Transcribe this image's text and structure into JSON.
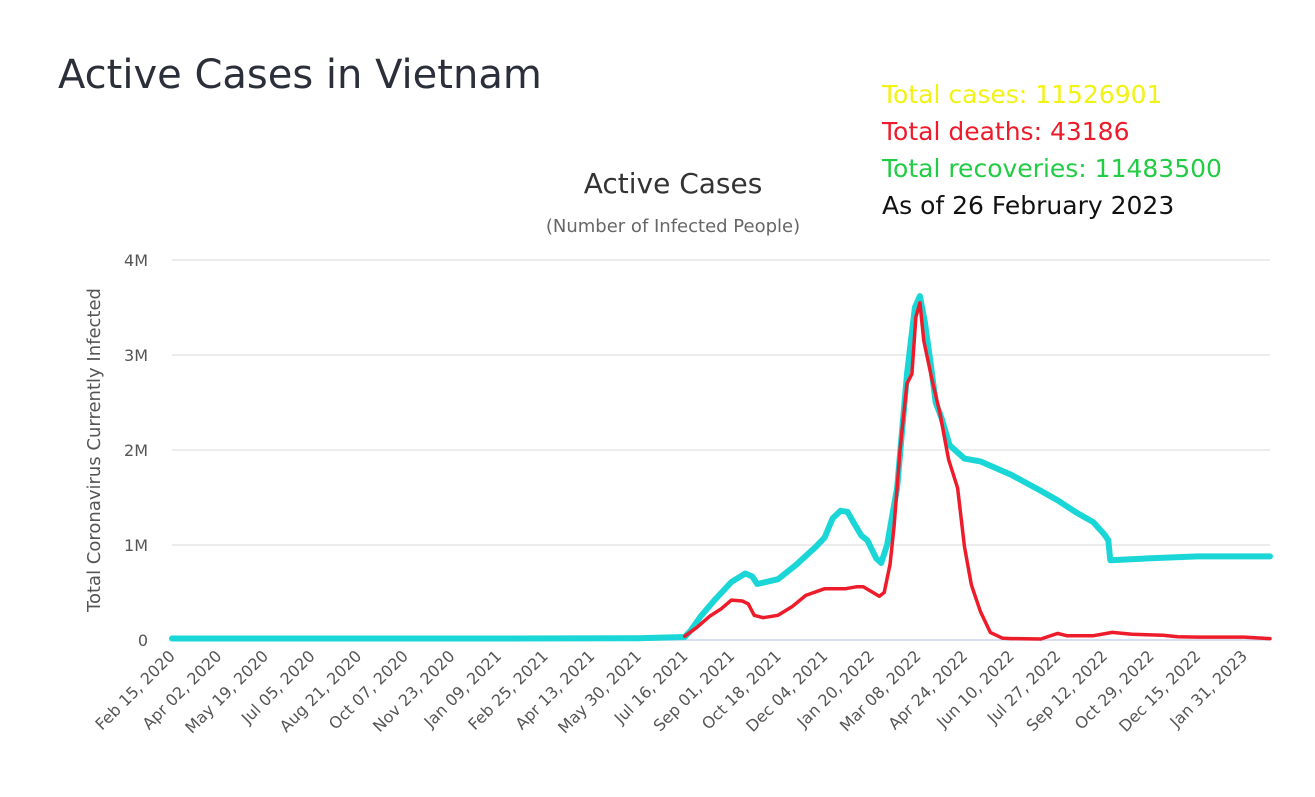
{
  "page_title": "Active Cases in Vietnam",
  "totals": {
    "cases": {
      "label": "Total cases: 11526901",
      "color": "#f2f215"
    },
    "deaths": {
      "label": "Total deaths: 43186",
      "color": "#ee1c2b"
    },
    "recoveries": {
      "label": "Total recoveries: 11483500",
      "color": "#22cc44"
    },
    "as_of": {
      "label": "As of 26 February 2023",
      "color": "#111111"
    }
  },
  "chart_data": {
    "type": "line",
    "title": "Active Cases",
    "subtitle": "(Number of Infected People)",
    "xlabel": "",
    "ylabel": "Total Coronavirus Currently Infected",
    "ylim": [
      0,
      4000000
    ],
    "xlim": [
      "2020-02-15",
      "2023-02-26"
    ],
    "yticks": [
      {
        "value": 0,
        "label": "0"
      },
      {
        "value": 1000000,
        "label": "1M"
      },
      {
        "value": 2000000,
        "label": "2M"
      },
      {
        "value": 3000000,
        "label": "3M"
      },
      {
        "value": 4000000,
        "label": "4M"
      }
    ],
    "xticks": [
      {
        "date": "2020-02-15",
        "label": "Feb 15, 2020"
      },
      {
        "date": "2020-04-02",
        "label": "Apr 02, 2020"
      },
      {
        "date": "2020-05-19",
        "label": "May 19, 2020"
      },
      {
        "date": "2020-07-05",
        "label": "Jul 05, 2020"
      },
      {
        "date": "2020-08-21",
        "label": "Aug 21, 2020"
      },
      {
        "date": "2020-10-07",
        "label": "Oct 07, 2020"
      },
      {
        "date": "2020-11-23",
        "label": "Nov 23, 2020"
      },
      {
        "date": "2021-01-09",
        "label": "Jan 09, 2021"
      },
      {
        "date": "2021-02-25",
        "label": "Feb 25, 2021"
      },
      {
        "date": "2021-04-13",
        "label": "Apr 13, 2021"
      },
      {
        "date": "2021-05-30",
        "label": "May 30, 2021"
      },
      {
        "date": "2021-07-16",
        "label": "Jul 16, 2021"
      },
      {
        "date": "2021-09-01",
        "label": "Sep 01, 2021"
      },
      {
        "date": "2021-10-18",
        "label": "Oct 18, 2021"
      },
      {
        "date": "2021-12-04",
        "label": "Dec 04, 2021"
      },
      {
        "date": "2022-01-20",
        "label": "Jan 20, 2022"
      },
      {
        "date": "2022-03-08",
        "label": "Mar 08, 2022"
      },
      {
        "date": "2022-04-24",
        "label": "Apr 24, 2022"
      },
      {
        "date": "2022-06-10",
        "label": "Jun 10, 2022"
      },
      {
        "date": "2022-07-27",
        "label": "Jul 27, 2022"
      },
      {
        "date": "2022-09-12",
        "label": "Sep 12, 2022"
      },
      {
        "date": "2022-10-29",
        "label": "Oct 29, 2022"
      },
      {
        "date": "2022-12-15",
        "label": "Dec 15, 2022"
      },
      {
        "date": "2023-01-31",
        "label": "Jan 31, 2023"
      }
    ],
    "grid": true,
    "legend": "none",
    "series": [
      {
        "color": "#1ad6d6",
        "points": [
          [
            "2020-02-15",
            16000
          ],
          [
            "2020-07-05",
            16000
          ],
          [
            "2021-01-09",
            16000
          ],
          [
            "2021-05-30",
            18000
          ],
          [
            "2021-07-16",
            32000
          ],
          [
            "2021-07-22",
            100000
          ],
          [
            "2021-08-01",
            250000
          ],
          [
            "2021-08-15",
            420000
          ],
          [
            "2021-09-01",
            610000
          ],
          [
            "2021-09-15",
            700000
          ],
          [
            "2021-09-22",
            670000
          ],
          [
            "2021-09-27",
            590000
          ],
          [
            "2021-10-18",
            640000
          ],
          [
            "2021-11-05",
            790000
          ],
          [
            "2021-11-25",
            980000
          ],
          [
            "2021-12-04",
            1080000
          ],
          [
            "2021-12-12",
            1280000
          ],
          [
            "2021-12-20",
            1360000
          ],
          [
            "2021-12-27",
            1350000
          ],
          [
            "2022-01-02",
            1240000
          ],
          [
            "2022-01-10",
            1100000
          ],
          [
            "2022-01-16",
            1050000
          ],
          [
            "2022-01-25",
            860000
          ],
          [
            "2022-01-30",
            810000
          ],
          [
            "2022-02-05",
            1000000
          ],
          [
            "2022-02-15",
            1600000
          ],
          [
            "2022-02-25",
            2800000
          ],
          [
            "2022-03-05",
            3500000
          ],
          [
            "2022-03-10",
            3620000
          ],
          [
            "2022-03-15",
            3350000
          ],
          [
            "2022-03-21",
            2900000
          ],
          [
            "2022-03-26",
            2500000
          ],
          [
            "2022-04-01",
            2330000
          ],
          [
            "2022-04-09",
            2050000
          ],
          [
            "2022-04-24",
            1910000
          ],
          [
            "2022-05-10",
            1880000
          ],
          [
            "2022-06-10",
            1740000
          ],
          [
            "2022-07-10",
            1570000
          ],
          [
            "2022-07-27",
            1470000
          ],
          [
            "2022-08-15",
            1340000
          ],
          [
            "2022-09-01",
            1240000
          ],
          [
            "2022-09-12",
            1110000
          ],
          [
            "2022-09-16",
            1050000
          ],
          [
            "2022-09-18",
            840000
          ],
          [
            "2022-10-29",
            860000
          ],
          [
            "2022-12-15",
            880000
          ],
          [
            "2023-02-26",
            880000
          ]
        ]
      },
      {
        "color": "#ee1c2b",
        "points": [
          [
            "2021-07-16",
            40000
          ],
          [
            "2021-07-28",
            130000
          ],
          [
            "2021-08-10",
            250000
          ],
          [
            "2021-08-22",
            330000
          ],
          [
            "2021-09-01",
            420000
          ],
          [
            "2021-09-12",
            410000
          ],
          [
            "2021-09-18",
            380000
          ],
          [
            "2021-09-24",
            260000
          ],
          [
            "2021-10-03",
            235000
          ],
          [
            "2021-10-18",
            260000
          ],
          [
            "2021-11-01",
            350000
          ],
          [
            "2021-11-15",
            470000
          ],
          [
            "2021-12-04",
            540000
          ],
          [
            "2021-12-25",
            540000
          ],
          [
            "2022-01-05",
            560000
          ],
          [
            "2022-01-12",
            560000
          ],
          [
            "2022-01-20",
            510000
          ],
          [
            "2022-01-28",
            460000
          ],
          [
            "2022-02-02",
            500000
          ],
          [
            "2022-02-08",
            800000
          ],
          [
            "2022-02-12",
            1200000
          ],
          [
            "2022-02-18",
            2000000
          ],
          [
            "2022-02-25",
            2700000
          ],
          [
            "2022-03-02",
            2800000
          ],
          [
            "2022-03-06",
            3400000
          ],
          [
            "2022-03-10",
            3550000
          ],
          [
            "2022-03-14",
            3150000
          ],
          [
            "2022-03-22",
            2750000
          ],
          [
            "2022-03-30",
            2400000
          ],
          [
            "2022-04-08",
            1900000
          ],
          [
            "2022-04-17",
            1600000
          ],
          [
            "2022-04-24",
            980000
          ],
          [
            "2022-05-01",
            580000
          ],
          [
            "2022-05-10",
            300000
          ],
          [
            "2022-05-20",
            80000
          ],
          [
            "2022-06-01",
            20000
          ],
          [
            "2022-06-10",
            15000
          ],
          [
            "2022-07-10",
            10000
          ],
          [
            "2022-07-27",
            70000
          ],
          [
            "2022-08-05",
            45000
          ],
          [
            "2022-09-01",
            45000
          ],
          [
            "2022-09-20",
            80000
          ],
          [
            "2022-10-10",
            60000
          ],
          [
            "2022-11-10",
            50000
          ],
          [
            "2022-11-25",
            35000
          ],
          [
            "2022-12-15",
            30000
          ],
          [
            "2023-01-31",
            30000
          ],
          [
            "2023-02-26",
            15000
          ]
        ]
      }
    ]
  }
}
